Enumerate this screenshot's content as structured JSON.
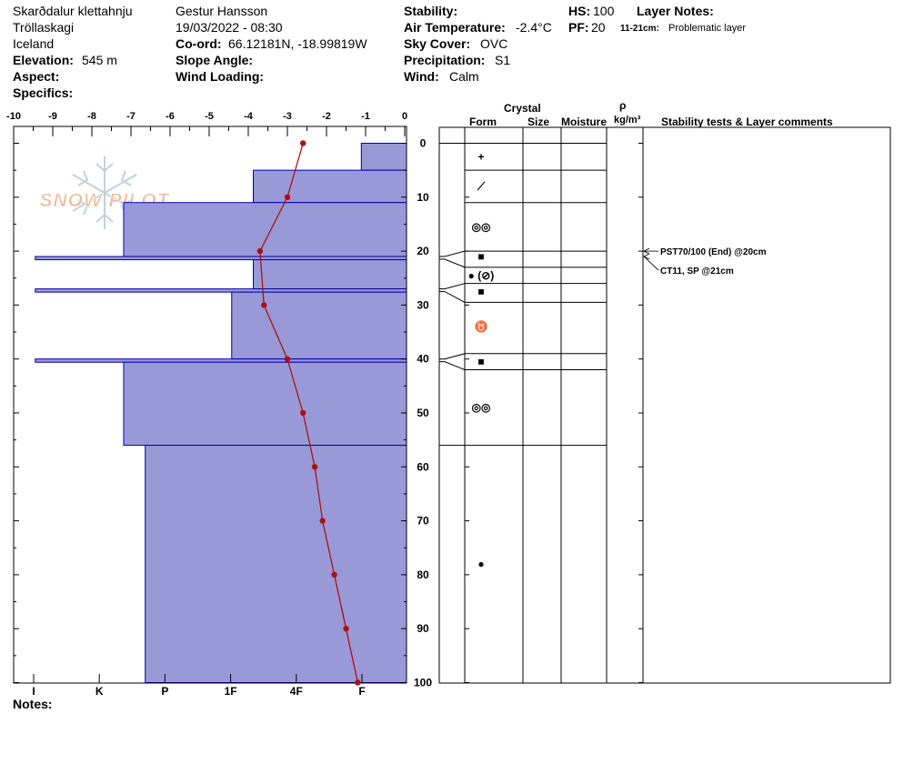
{
  "header": {
    "location": "Skarðdalur  klettahnju",
    "region": "Tröllaskagi",
    "country": "Iceland",
    "elevation_label": "Elevation:",
    "elevation_value": "545 m",
    "aspect_label": "Aspect:",
    "specifics_label": "Specifics:",
    "observer": "Gestur Hansson",
    "datetime": "19/03/2022 - 08:30",
    "coord_label": "Co-ord:",
    "coord_value": "66.12181N, -18.99819W",
    "slope_label": "Slope Angle:",
    "wind_loading_label": "Wind Loading:",
    "stability_label": "Stability:",
    "air_temp_label": "Air Temperature:",
    "air_temp_value": "-2.4°C",
    "sky_label": "Sky Cover:",
    "sky_value": "OVC",
    "precip_label": "Precipitation:",
    "precip_value": "S1",
    "wind_label": "Wind:",
    "wind_value": "Calm",
    "hs_label": "HS:",
    "hs_value": "100",
    "pf_label": "PF:",
    "pf_value": "20",
    "layer_notes_label": "Layer Notes:",
    "layer_note_range": "11-21cm:",
    "layer_note_text": "Problematic layer"
  },
  "columns": {
    "crystal": "Crystal",
    "form": "Form",
    "size": "Size",
    "moisture": "Moisture",
    "rho": "ρ",
    "density_unit": "kg/m³",
    "stability": "Stability tests & Layer comments"
  },
  "notes_label": "Notes:",
  "watermark": "SNOW PILOT",
  "colors": {
    "hardness_fill": "#9999d8",
    "hardness_stroke": "#0000aa",
    "temp_line": "#aa1111"
  },
  "chart_data": {
    "type": "snow-profile",
    "depth_range": [
      0,
      100
    ],
    "depth_ticks": [
      0,
      10,
      20,
      30,
      40,
      50,
      60,
      70,
      80,
      90,
      100
    ],
    "temp_range": [
      -10,
      0
    ],
    "temp_ticks": [
      -10,
      -9,
      -8,
      -7,
      -6,
      -5,
      -4,
      -3,
      -2,
      -1,
      0
    ],
    "hardness_ticks": [
      "I",
      "K",
      "P",
      "1F",
      "4F",
      "F"
    ],
    "hardness_layers": [
      {
        "top": 0,
        "bottom": 5,
        "hardness": 0.115
      },
      {
        "top": 5,
        "bottom": 11,
        "hardness": 0.39
      },
      {
        "top": 11,
        "bottom": 21,
        "hardness": 0.72
      },
      {
        "top": 21,
        "bottom": 21.6,
        "hardness": 0.945
      },
      {
        "top": 21.6,
        "bottom": 27,
        "hardness": 0.39
      },
      {
        "top": 27,
        "bottom": 27.6,
        "hardness": 0.945
      },
      {
        "top": 27.6,
        "bottom": 40,
        "hardness": 0.445
      },
      {
        "top": 40,
        "bottom": 40.6,
        "hardness": 0.945
      },
      {
        "top": 40.6,
        "bottom": 56,
        "hardness": 0.72
      },
      {
        "top": 56,
        "bottom": 100,
        "hardness": 0.665
      }
    ],
    "temperature_profile": [
      {
        "depth": 0,
        "temp": -2.6
      },
      {
        "depth": 10,
        "temp": -3.0
      },
      {
        "depth": 20,
        "temp": -3.7
      },
      {
        "depth": 30,
        "temp": -3.6
      },
      {
        "depth": 40,
        "temp": -3.0
      },
      {
        "depth": 50,
        "temp": -2.6
      },
      {
        "depth": 60,
        "temp": -2.3
      },
      {
        "depth": 70,
        "temp": -2.1
      },
      {
        "depth": 80,
        "temp": -1.8
      },
      {
        "depth": 90,
        "temp": -1.5
      },
      {
        "depth": 100,
        "temp": -1.2
      }
    ],
    "layer_boundaries": [
      0,
      5,
      11,
      20,
      23,
      26,
      29.5,
      39,
      42,
      56
    ],
    "form_symbols": [
      {
        "depth": 2.5,
        "symbol": "+"
      },
      {
        "depth": 8,
        "symbol": "⟋"
      },
      {
        "depth": 15.5,
        "symbol": "◎◎"
      },
      {
        "depth": 21,
        "symbol": "■"
      },
      {
        "depth": 24.5,
        "symbol": "● (⊘)"
      },
      {
        "depth": 27.5,
        "symbol": "■"
      },
      {
        "depth": 34,
        "symbol": "♉"
      },
      {
        "depth": 40.5,
        "symbol": "■"
      },
      {
        "depth": 49,
        "symbol": "◎◎"
      },
      {
        "depth": 78,
        "symbol": "●"
      }
    ],
    "stability_tests": [
      {
        "depth": 20,
        "label": "PST70/100 (End) @20cm"
      },
      {
        "depth": 21,
        "label": "CT11, SP @21cm"
      }
    ]
  }
}
